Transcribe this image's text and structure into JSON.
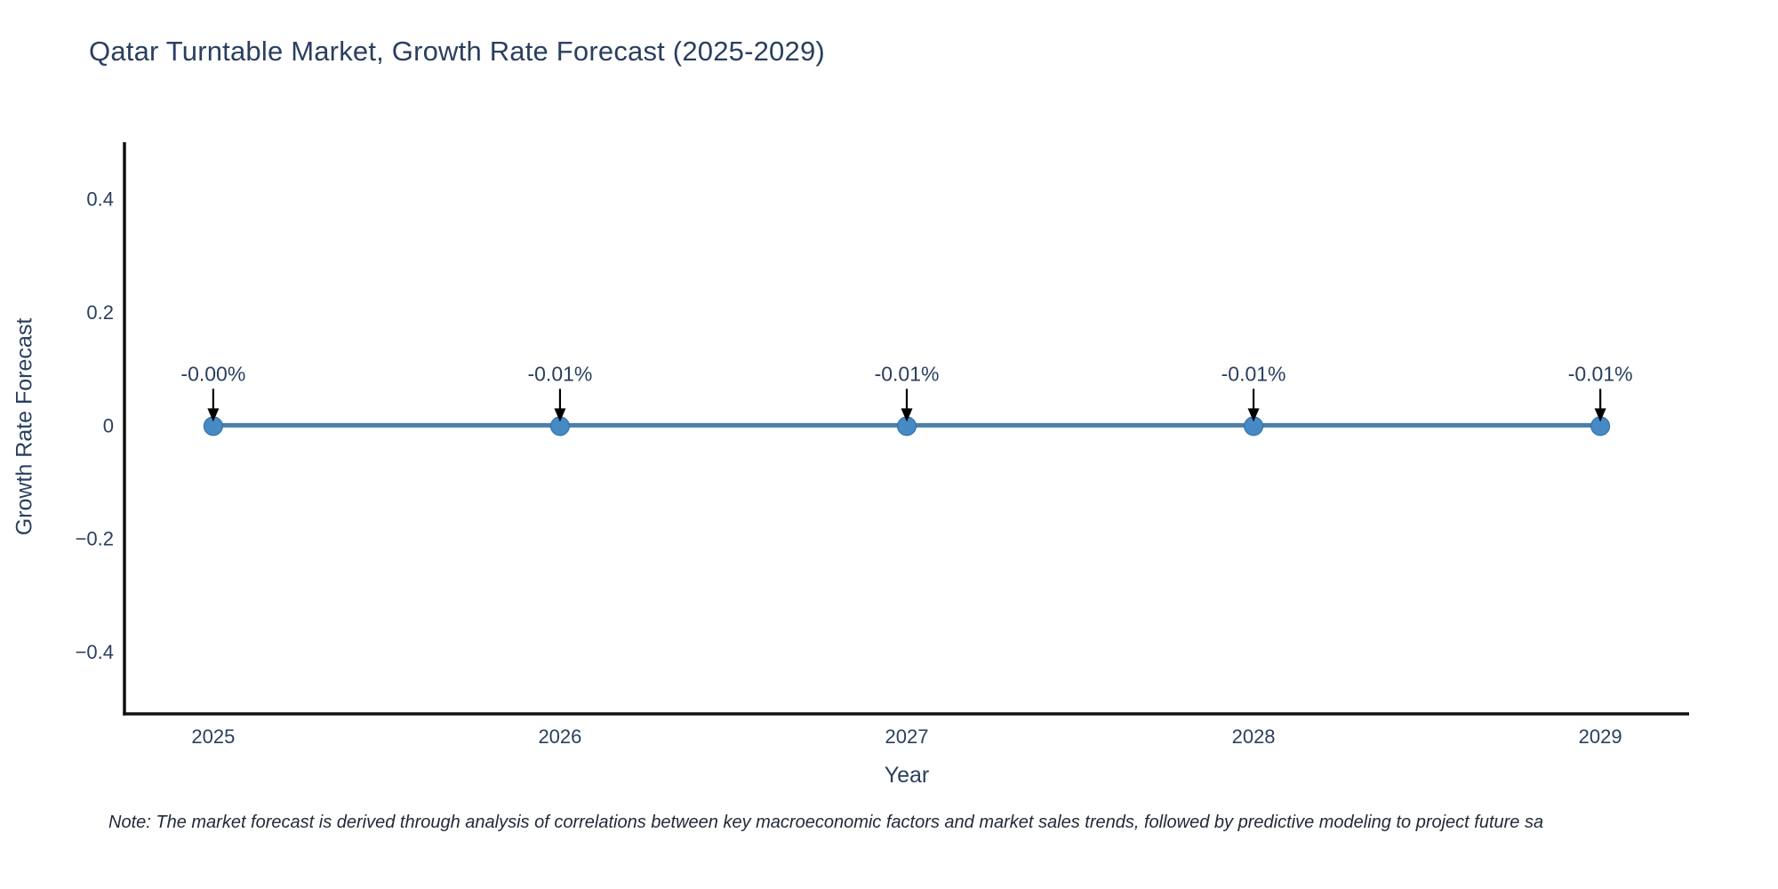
{
  "note": "Note: The market forecast is derived through analysis of correlations between key macroeconomic factors and market sales trends, followed by predictive modeling to project future sa",
  "colors": {
    "background": "#ffffff",
    "text": "#2a3f5f",
    "axis_line": "#111111",
    "series_line": "#4b7fa8",
    "marker_fill": "#4689c4",
    "marker_edge": "#2f6da3",
    "arrow": "#000000",
    "annotation_text": "#2a3f5f"
  },
  "chart_data": {
    "type": "line",
    "title": "Qatar Turntable Market, Growth Rate Forecast (2025-2029)",
    "xlabel": "Year",
    "ylabel": "Growth Rate Forecast",
    "x": [
      2025,
      2026,
      2027,
      2028,
      2029
    ],
    "xtick_labels": [
      "2025",
      "2026",
      "2027",
      "2028",
      "2029"
    ],
    "series": [
      {
        "name": "Growth Rate Forecast",
        "values_pct": [
          -0.0,
          -0.01,
          -0.01,
          -0.01,
          -0.01
        ],
        "point_labels": [
          "-0.00%",
          "-0.01%",
          "-0.01%",
          "-0.01%",
          "-0.01%"
        ]
      }
    ],
    "ytick_values": [
      0.4,
      0.2,
      0,
      -0.2,
      -0.4
    ],
    "ytick_labels": [
      "0.4",
      "0.2",
      "0",
      "−0.2",
      "−0.4"
    ],
    "xlim": [
      2024.744,
      2029.256
    ],
    "ylim": [
      -0.51,
      0.5
    ],
    "grid": false,
    "legend": "none",
    "annotations_have_arrows": true
  }
}
